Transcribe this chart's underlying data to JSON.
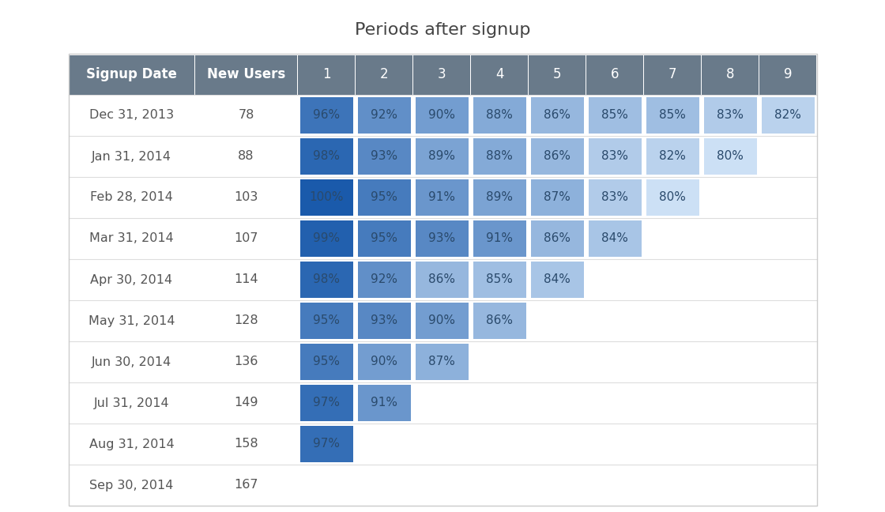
{
  "title": "Periods after signup",
  "header_cols": [
    "Signup Date",
    "New Users",
    "1",
    "2",
    "3",
    "4",
    "5",
    "6",
    "7",
    "8",
    "9"
  ],
  "rows": [
    {
      "date": "Dec 31, 2013",
      "new_users": 78,
      "values": [
        96,
        92,
        90,
        88,
        86,
        85,
        85,
        83,
        82
      ]
    },
    {
      "date": "Jan 31, 2014",
      "new_users": 88,
      "values": [
        98,
        93,
        89,
        88,
        86,
        83,
        82,
        80,
        null
      ]
    },
    {
      "date": "Feb 28, 2014",
      "new_users": 103,
      "values": [
        100,
        95,
        91,
        89,
        87,
        83,
        80,
        null,
        null
      ]
    },
    {
      "date": "Mar 31, 2014",
      "new_users": 107,
      "values": [
        99,
        95,
        93,
        91,
        86,
        84,
        null,
        null,
        null
      ]
    },
    {
      "date": "Apr 30, 2014",
      "new_users": 114,
      "values": [
        98,
        92,
        86,
        85,
        84,
        null,
        null,
        null,
        null
      ]
    },
    {
      "date": "May 31, 2014",
      "new_users": 128,
      "values": [
        95,
        93,
        90,
        86,
        null,
        null,
        null,
        null,
        null
      ]
    },
    {
      "date": "Jun 30, 2014",
      "new_users": 136,
      "values": [
        95,
        90,
        87,
        null,
        null,
        null,
        null,
        null,
        null
      ]
    },
    {
      "date": "Jul 31, 2014",
      "new_users": 149,
      "values": [
        97,
        91,
        null,
        null,
        null,
        null,
        null,
        null,
        null
      ]
    },
    {
      "date": "Aug 31, 2014",
      "new_users": 158,
      "values": [
        97,
        null,
        null,
        null,
        null,
        null,
        null,
        null,
        null
      ]
    },
    {
      "date": "Sep 30, 2014",
      "new_users": 167,
      "values": [
        null,
        null,
        null,
        null,
        null,
        null,
        null,
        null,
        null
      ]
    }
  ],
  "header_bg": "#697a8a",
  "header_text": "#ffffff",
  "row_text": "#555555",
  "title_color": "#444444",
  "cell_text_color": "#2a4a6c",
  "color_high": "#1a5aab",
  "color_low": "#cce0f5",
  "sep_color": "#dddddd",
  "border_color": "#cccccc",
  "figsize": [
    11.2,
    6.48
  ],
  "dpi": 100
}
